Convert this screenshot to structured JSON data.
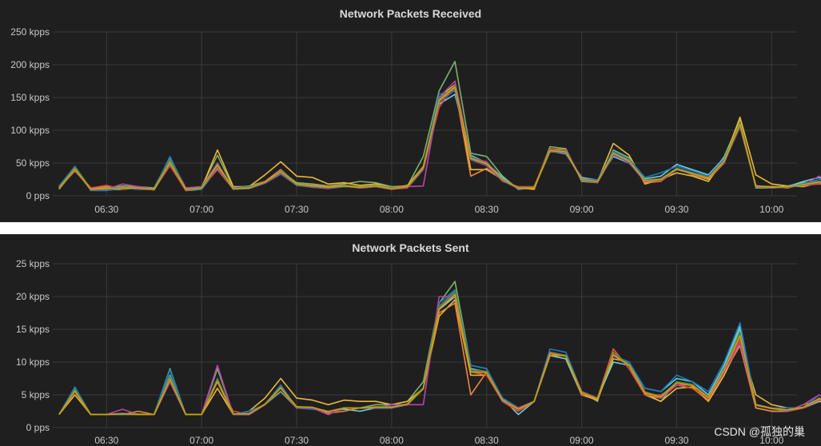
{
  "watermark": "CSDN @孤独的巢",
  "chart_data": [
    {
      "type": "line",
      "title": "Network Packets Received",
      "y_ticks": [
        "250 kpps",
        "200 kpps",
        "150 kpps",
        "100 kpps",
        "50 kpps",
        "0 pps"
      ],
      "y_tick_values": [
        250,
        200,
        150,
        100,
        50,
        0
      ],
      "ylim": [
        0,
        250
      ],
      "x_ticks": [
        "06:30",
        "07:00",
        "07:30",
        "08:00",
        "08:30",
        "09:00",
        "09:30",
        "10:00"
      ],
      "x_tick_minutes": [
        390,
        420,
        450,
        480,
        510,
        540,
        570,
        600
      ],
      "xlim": [
        373,
        608
      ],
      "x_minutes_start": 375,
      "x_step_minutes": 5,
      "grid": true,
      "colors": [
        "#7eb26d",
        "#eab839",
        "#6ed0e0",
        "#ef843c",
        "#e24d42",
        "#1f78c1",
        "#ba43a9",
        "#705da0",
        "#508642",
        "#cca300"
      ],
      "series": [
        {
          "values": [
            12,
            45,
            10,
            12,
            15,
            14,
            12,
            58,
            12,
            14,
            62,
            12,
            15,
            22,
            38,
            20,
            18,
            15,
            18,
            22,
            20,
            14,
            15,
            60,
            160,
            205,
            65,
            60,
            30,
            10,
            12,
            75,
            72,
            22,
            20,
            70,
            58,
            22,
            22,
            40,
            35,
            25,
            60,
            115,
            12,
            12,
            15,
            20,
            22,
            18
          ]
        },
        {
          "values": [
            10,
            40,
            12,
            10,
            12,
            10,
            10,
            52,
            10,
            12,
            70,
            14,
            14,
            32,
            52,
            30,
            28,
            18,
            20,
            16,
            18,
            12,
            16,
            45,
            150,
            170,
            40,
            40,
            25,
            12,
            10,
            72,
            70,
            25,
            22,
            80,
            62,
            18,
            25,
            35,
            30,
            22,
            55,
            120,
            32,
            18,
            15,
            14,
            20,
            15
          ]
        },
        {
          "values": [
            14,
            42,
            9,
            9,
            10,
            12,
            9,
            48,
            8,
            10,
            42,
            10,
            12,
            20,
            34,
            16,
            14,
            12,
            15,
            12,
            14,
            10,
            14,
            40,
            140,
            155,
            62,
            50,
            28,
            10,
            14,
            68,
            64,
            28,
            24,
            60,
            50,
            26,
            30,
            48,
            40,
            32,
            58,
            108,
            15,
            14,
            14,
            22,
            28,
            16
          ]
        },
        {
          "values": [
            12,
            38,
            11,
            14,
            12,
            14,
            10,
            50,
            10,
            12,
            45,
            11,
            13,
            22,
            40,
            18,
            16,
            14,
            16,
            14,
            16,
            12,
            15,
            42,
            145,
            165,
            30,
            42,
            24,
            12,
            12,
            70,
            70,
            24,
            22,
            65,
            55,
            20,
            22,
            42,
            32,
            25,
            50,
            110,
            14,
            14,
            12,
            18,
            20,
            16
          ]
        },
        {
          "values": [
            13,
            40,
            12,
            16,
            10,
            13,
            10,
            46,
            8,
            12,
            40,
            10,
            12,
            22,
            35,
            16,
            13,
            12,
            14,
            13,
            15,
            10,
            12,
            40,
            135,
            170,
            55,
            48,
            22,
            14,
            14,
            72,
            68,
            24,
            20,
            62,
            52,
            24,
            22,
            40,
            34,
            30,
            52,
            105,
            16,
            12,
            14,
            16,
            18,
            17
          ]
        },
        {
          "values": [
            15,
            45,
            8,
            8,
            12,
            10,
            10,
            60,
            10,
            10,
            45,
            12,
            14,
            20,
            38,
            18,
            15,
            13,
            14,
            14,
            15,
            12,
            14,
            42,
            155,
            160,
            60,
            50,
            26,
            12,
            12,
            70,
            65,
            26,
            24,
            68,
            56,
            28,
            35,
            45,
            38,
            30,
            56,
            110,
            14,
            12,
            14,
            18,
            25,
            16
          ]
        },
        {
          "values": [
            12,
            42,
            10,
            10,
            18,
            14,
            10,
            52,
            12,
            14,
            50,
            10,
            12,
            22,
            35,
            16,
            14,
            12,
            15,
            12,
            14,
            10,
            14,
            15,
            150,
            175,
            58,
            52,
            24,
            12,
            12,
            68,
            70,
            26,
            22,
            64,
            50,
            22,
            25,
            42,
            35,
            28,
            55,
            108,
            14,
            12,
            14,
            16,
            30,
            15
          ]
        },
        {
          "values": [
            11,
            40,
            9,
            10,
            12,
            11,
            9,
            50,
            9,
            12,
            44,
            10,
            11,
            19,
            33,
            16,
            13,
            11,
            14,
            13,
            14,
            11,
            13,
            40,
            142,
            162,
            55,
            46,
            23,
            11,
            12,
            67,
            66,
            24,
            21,
            62,
            51,
            23,
            24,
            40,
            33,
            27,
            51,
            106,
            14,
            12,
            13,
            16,
            20,
            15
          ]
        },
        {
          "values": [
            13,
            43,
            10,
            11,
            13,
            12,
            10,
            54,
            10,
            13,
            48,
            11,
            13,
            21,
            36,
            17,
            15,
            13,
            16,
            14,
            16,
            12,
            14,
            44,
            148,
            168,
            58,
            50,
            25,
            12,
            13,
            70,
            68,
            25,
            22,
            66,
            54,
            24,
            26,
            42,
            35,
            28,
            54,
            112,
            15,
            13,
            14,
            17,
            22,
            16
          ]
        },
        {
          "values": [
            12,
            41,
            10,
            11,
            12,
            12,
            10,
            51,
            10,
            12,
            47,
            11,
            12,
            21,
            37,
            18,
            15,
            13,
            15,
            13,
            15,
            11,
            14,
            43,
            146,
            166,
            57,
            49,
            25,
            12,
            12,
            69,
            67,
            25,
            22,
            65,
            53,
            23,
            25,
            41,
            34,
            27,
            53,
            109,
            15,
            13,
            14,
            17,
            21,
            16
          ]
        }
      ]
    },
    {
      "type": "line",
      "title": "Network Packets Sent",
      "y_ticks": [
        "25 kpps",
        "20 kpps",
        "15 kpps",
        "10 kpps",
        "5 kpps",
        "0 pps"
      ],
      "y_tick_values": [
        25,
        20,
        15,
        10,
        5,
        0
      ],
      "ylim": [
        0,
        25
      ],
      "x_ticks": [
        "06:30",
        "07:00",
        "07:30",
        "08:00",
        "08:30",
        "09:00",
        "09:30",
        "10:00"
      ],
      "x_tick_minutes": [
        390,
        420,
        450,
        480,
        510,
        540,
        570,
        600
      ],
      "xlim": [
        373,
        608
      ],
      "x_minutes_start": 375,
      "x_step_minutes": 5,
      "grid": true,
      "colors": [
        "#7eb26d",
        "#eab839",
        "#6ed0e0",
        "#ef843c",
        "#e24d42",
        "#1f78c1",
        "#ba43a9",
        "#705da0",
        "#508642",
        "#cca300"
      ],
      "series": [
        {
          "values": [
            2,
            6,
            2,
            2,
            2,
            2,
            2,
            9,
            2,
            2,
            9,
            2,
            2,
            3.5,
            5.5,
            3,
            3,
            2.5,
            3,
            3,
            3.5,
            3.5,
            4,
            7,
            19,
            22.3,
            9.5,
            9,
            4,
            3,
            4,
            11.5,
            11,
            5.5,
            4,
            12,
            9,
            5,
            4,
            7,
            6.5,
            4.5,
            9,
            15,
            3,
            2.5,
            2.5,
            3,
            4.5,
            3.5
          ]
        },
        {
          "values": [
            2,
            5,
            2,
            2,
            2,
            2,
            2,
            7,
            2,
            2,
            6,
            2,
            2.5,
            4.5,
            7.5,
            4.5,
            4.2,
            3.5,
            4.2,
            4,
            4,
            3.5,
            4,
            6,
            17,
            19.5,
            8,
            8,
            4.5,
            3,
            4,
            11,
            10.5,
            5,
            4.2,
            10.5,
            10,
            5.2,
            4,
            6,
            6.2,
            4,
            8,
            13,
            5,
            3.5,
            3,
            3,
            4,
            3.5
          ]
        },
        {
          "values": [
            2,
            6,
            2,
            2,
            2,
            2,
            2,
            8,
            2,
            2,
            7,
            2,
            2,
            3.5,
            6,
            3,
            3,
            2.5,
            2.8,
            2.5,
            3,
            3,
            3.5,
            6,
            18,
            20,
            9,
            8.5,
            4.5,
            2,
            4,
            11,
            10.5,
            5,
            4.5,
            10,
            9.5,
            6,
            5.5,
            7.5,
            7,
            5,
            9.5,
            15.5,
            3,
            2.5,
            2.5,
            3,
            4,
            3.5
          ]
        },
        {
          "values": [
            2,
            5.5,
            2,
            2,
            2,
            2.5,
            2,
            7.5,
            2,
            2,
            7,
            2,
            2,
            3.5,
            6,
            3,
            3,
            2.2,
            2.5,
            3,
            3,
            3,
            3.5,
            6,
            17.5,
            19,
            5,
            8.5,
            4,
            2.5,
            4,
            11,
            11,
            5,
            4.5,
            11.5,
            9.5,
            5,
            4.5,
            6.5,
            6,
            4.2,
            8.5,
            12.5,
            3,
            2.5,
            2.5,
            3.5,
            4.2,
            3.5
          ]
        },
        {
          "values": [
            2,
            5.5,
            2,
            2,
            2,
            2,
            2,
            7,
            2,
            2,
            7,
            2.5,
            2,
            3.5,
            6,
            3,
            3,
            2,
            3,
            3,
            3,
            3,
            3.5,
            6,
            18,
            21,
            8.5,
            8,
            4,
            2.5,
            4,
            11.5,
            11,
            5.5,
            4.5,
            12,
            9,
            5,
            5,
            6.5,
            6,
            4.5,
            8.5,
            13.5,
            3.5,
            3,
            2.5,
            3,
            4.2,
            3.8
          ]
        },
        {
          "values": [
            2,
            6.2,
            2,
            2,
            2,
            2,
            2,
            8.8,
            2,
            2,
            7.5,
            2,
            2.5,
            3.5,
            6.5,
            3,
            2.8,
            2.5,
            3,
            3,
            3,
            3,
            3.5,
            6,
            19,
            21,
            9.5,
            9,
            4.5,
            3,
            4,
            12,
            11.5,
            5.5,
            4.5,
            11,
            10,
            6,
            5.5,
            8,
            7,
            5.5,
            10,
            16,
            3.5,
            3,
            3,
            3,
            5,
            4
          ]
        },
        {
          "values": [
            2,
            5.5,
            2,
            2,
            2.8,
            2,
            2,
            7,
            2,
            2,
            9.5,
            2,
            2,
            3.5,
            6,
            3,
            3,
            2,
            3,
            3,
            3,
            3.5,
            3.5,
            3.5,
            20,
            20,
            8.5,
            8.5,
            4,
            3,
            4,
            11.5,
            11,
            5.5,
            4.5,
            11,
            9.5,
            5.5,
            4.5,
            6.5,
            6.5,
            4.5,
            8.5,
            13,
            3.5,
            3,
            2.5,
            3.5,
            5,
            4
          ]
        },
        {
          "values": [
            2,
            5.5,
            2,
            2,
            2.2,
            2,
            2,
            7.5,
            2,
            2,
            7.2,
            2,
            2.2,
            3.5,
            6,
            3.2,
            3,
            2.5,
            3,
            3,
            3.2,
            3.2,
            3.6,
            6,
            18.3,
            20.5,
            8.6,
            8.5,
            4.2,
            2.8,
            4,
            11.3,
            10.9,
            5.3,
            4.4,
            11.2,
            9.5,
            5.4,
            4.8,
            6.9,
            6.5,
            4.6,
            8.9,
            14.2,
            3.4,
            2.9,
            2.7,
            3.1,
            4.4,
            3.7
          ]
        },
        {
          "values": [
            2,
            5.8,
            2,
            2,
            2.1,
            2.1,
            2,
            7.8,
            2,
            2,
            7.4,
            2.1,
            2.1,
            3.6,
            6.2,
            3.1,
            3.1,
            2.4,
            3,
            3,
            3.1,
            3.1,
            3.6,
            6.1,
            18.5,
            20.8,
            8.8,
            8.6,
            4.2,
            2.8,
            4,
            11.4,
            11,
            5.4,
            4.4,
            11.4,
            9.6,
            5.4,
            4.8,
            7,
            6.6,
            4.7,
            9,
            14.4,
            3.4,
            2.9,
            2.7,
            3.1,
            4.5,
            3.7
          ]
        },
        {
          "values": [
            2,
            5.6,
            2,
            2,
            2.1,
            2,
            2,
            7.4,
            2,
            2,
            7.1,
            2.1,
            2.1,
            3.6,
            6.1,
            3.2,
            3.1,
            2.4,
            3,
            3,
            3.1,
            3.1,
            3.6,
            5.9,
            18.1,
            20.3,
            8.5,
            8.4,
            4.2,
            2.8,
            4,
            11.3,
            10.9,
            5.3,
            4.4,
            11.1,
            9.5,
            5.3,
            4.7,
            6.8,
            6.4,
            4.6,
            8.8,
            14,
            3.5,
            2.9,
            2.7,
            3.1,
            4.4,
            3.7
          ]
        }
      ]
    }
  ]
}
